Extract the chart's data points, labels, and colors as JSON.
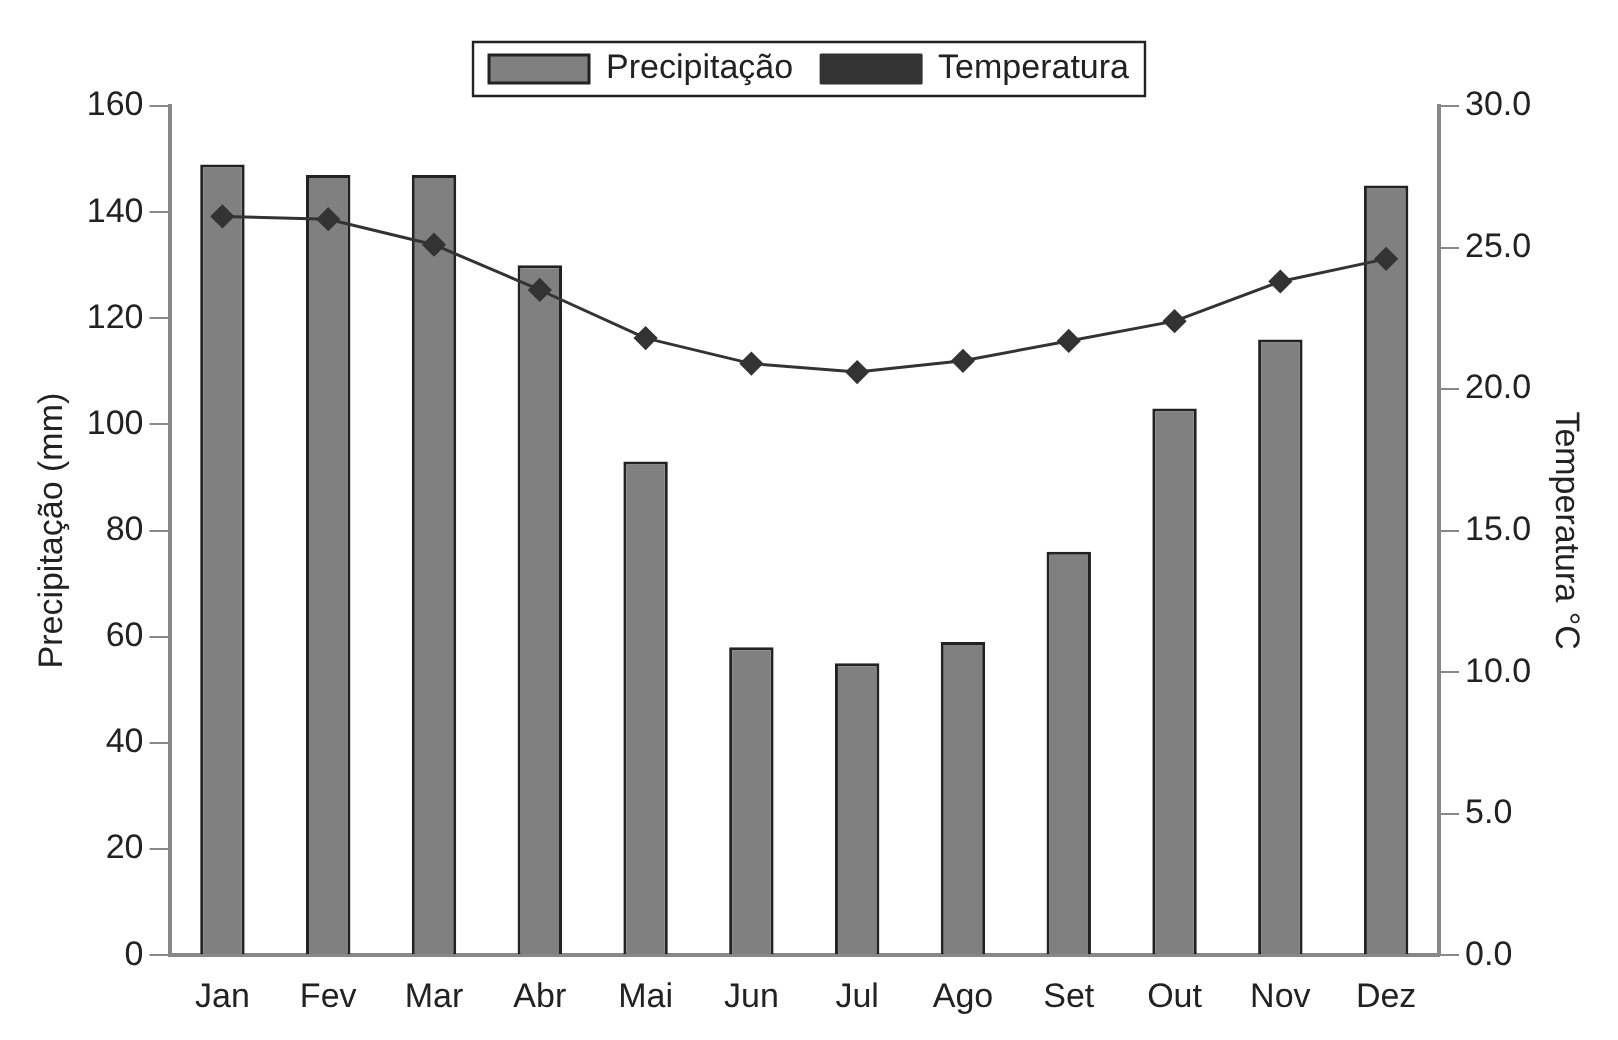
{
  "chart_data": {
    "type": "bar",
    "categories": [
      "Jan",
      "Fev",
      "Mar",
      "Abr",
      "Mai",
      "Jun",
      "Jul",
      "Ago",
      "Set",
      "Out",
      "Nov",
      "Dez"
    ],
    "series": [
      {
        "name": "Precipitação",
        "color": "#808080",
        "values": [
          149,
          147,
          147,
          130,
          93,
          58,
          55,
          59,
          76,
          103,
          116,
          145
        ]
      },
      {
        "name": "Temperatura",
        "type": "line",
        "axis": "y2",
        "color": "#333333",
        "marker": "diamond",
        "values": [
          26.1,
          26.0,
          25.1,
          23.5,
          21.8,
          20.9,
          20.6,
          21.0,
          21.7,
          22.4,
          23.8,
          24.6
        ]
      }
    ],
    "ylabel": "Precipitação (mm)",
    "y2label": "Temperatura °C",
    "ylim": [
      0,
      160
    ],
    "yticks": [
      0,
      20,
      40,
      60,
      80,
      100,
      120,
      140,
      160
    ],
    "y2lim": [
      0,
      30
    ],
    "y2ticks": [
      {
        "value": 0,
        "label": "0.0"
      },
      {
        "value": 5,
        "label": "5.0"
      },
      {
        "value": 10,
        "label": "10.0"
      },
      {
        "value": 15,
        "label": "15.0"
      },
      {
        "value": 20,
        "label": "20.0"
      },
      {
        "value": 25,
        "label": "25.0"
      },
      {
        "value": 30,
        "label": "30.0"
      }
    ],
    "grid": false,
    "legend": "top"
  }
}
